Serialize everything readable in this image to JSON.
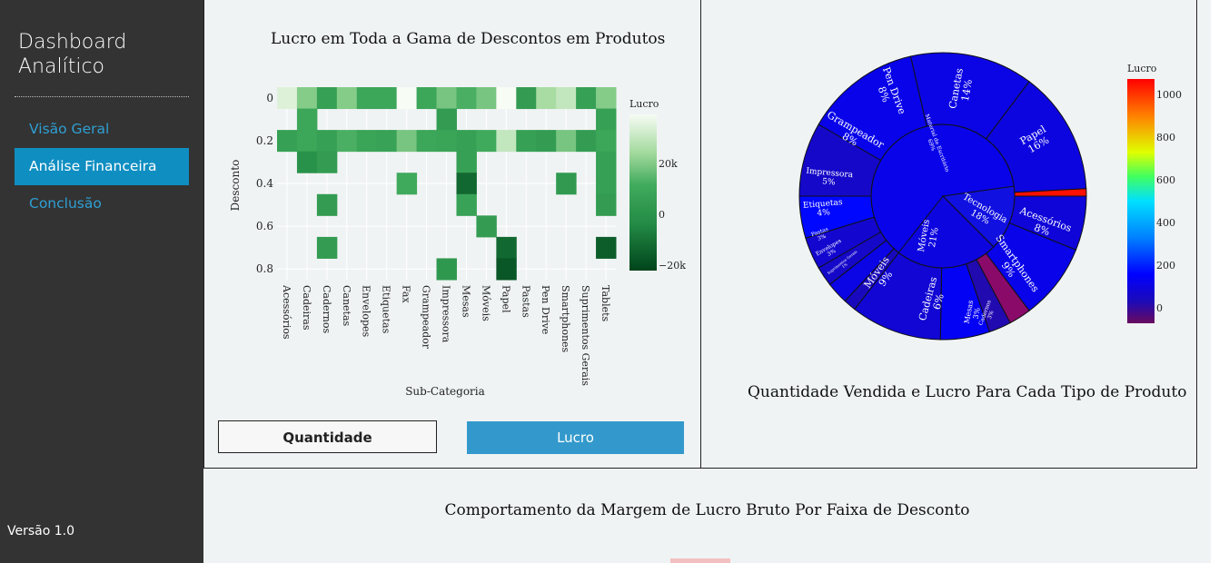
{
  "sidebar": {
    "brand": "Dashboard\nAnalítico",
    "nav": [
      {
        "label": "Visão Geral",
        "active": false
      },
      {
        "label": "Análise Financeira",
        "active": true
      },
      {
        "label": "Conclusão",
        "active": false
      }
    ],
    "version": "Versão 1.0"
  },
  "heatmap": {
    "title": "Lucro em Toda a Gama de Descontos em Produtos",
    "xlabel": "Sub-Categoria",
    "ylabel": "Desconto",
    "colorbar_title": "Lucro",
    "colorbar_ticks": [
      "20k",
      "0",
      "−20k"
    ],
    "categories": [
      "Acessórios",
      "Cadeiras",
      "Cadernos",
      "Canetas",
      "Envelopes",
      "Etiquetas",
      "Fax",
      "Grampeador",
      "Impressora",
      "Mesas",
      "Móveis",
      "Papel",
      "Pastas",
      "Pen Drive",
      "Smartphones",
      "Suprimentos Gerais",
      "Tablets"
    ],
    "y_ticks": [
      "0",
      "0.2",
      "0.4",
      "0.6",
      "0.8"
    ]
  },
  "buttons": {
    "quantidade": "Quantidade",
    "lucro": "Lucro"
  },
  "sunburst": {
    "title": "Quantidade Vendida e Lucro Para Cada Tipo de Produto",
    "colorbar_title": "Lucro",
    "colorbar_ticks": [
      "1000",
      "800",
      "600",
      "400",
      "200",
      "0"
    ],
    "center_labels": [
      {
        "name": "Material de Escritório",
        "pct": "69%"
      },
      {
        "name": "Tecnologia",
        "pct": "18%"
      },
      {
        "name": "Móveis",
        "pct": "21%"
      }
    ],
    "outer_labels": [
      {
        "name": "Canetas",
        "pct": "14%"
      },
      {
        "name": "Papel",
        "pct": "16%"
      },
      {
        "name": "Acessórios",
        "pct": "8%"
      },
      {
        "name": "Smartphones",
        "pct": "9%"
      },
      {
        "name": "Mesas",
        "pct": "3%"
      },
      {
        "name": "Cadernos",
        "pct": "3%"
      },
      {
        "name": "Cadeiras",
        "pct": "6%"
      },
      {
        "name": "Móveis",
        "pct": "9%"
      },
      {
        "name": "Suprimentos Gerais",
        "pct": "1%"
      },
      {
        "name": "Envelopes",
        "pct": "3%"
      },
      {
        "name": "Pastas",
        "pct": "3%"
      },
      {
        "name": "Etiquetas",
        "pct": "4%"
      },
      {
        "name": "Impressora",
        "pct": "5%"
      },
      {
        "name": "Grampeador",
        "pct": "8%"
      },
      {
        "name": "Pen Drive",
        "pct": "8%"
      }
    ]
  },
  "bottom": {
    "title": "Comportamento da Margem de Lucro Bruto Por Faixa de Desconto"
  },
  "chart_data": [
    {
      "type": "heatmap",
      "title": "Lucro em Toda a Gama de Descontos em Produtos",
      "xlabel": "Sub-Categoria",
      "ylabel": "Desconto",
      "x": [
        "Acessórios",
        "Cadeiras",
        "Cadernos",
        "Canetas",
        "Envelopes",
        "Etiquetas",
        "Fax",
        "Grampeador",
        "Impressora",
        "Mesas",
        "Móveis",
        "Papel",
        "Pastas",
        "Pen Drive",
        "Smartphones",
        "Suprimentos Gerais",
        "Tablets"
      ],
      "y": [
        0,
        0.1,
        0.2,
        0.3,
        0.4,
        0.5,
        0.6,
        0.7,
        0.8
      ],
      "zrange": [
        -25000,
        40000
      ],
      "colorscale": "Greens (high=light)",
      "z": [
        [
          35000,
          20000,
          5000,
          20000,
          8000,
          8000,
          40000,
          8000,
          18000,
          12000,
          18000,
          40000,
          3000,
          25000,
          30000,
          5000,
          20000
        ],
        [
          null,
          8000,
          null,
          null,
          null,
          null,
          null,
          null,
          3000,
          null,
          null,
          null,
          null,
          null,
          null,
          null,
          5000
        ],
        [
          5000,
          8000,
          5000,
          12000,
          7000,
          6000,
          18000,
          8000,
          7000,
          5000,
          10000,
          30000,
          5000,
          3000,
          18000,
          3000,
          8000
        ],
        [
          null,
          -2000,
          3000,
          null,
          null,
          null,
          null,
          null,
          null,
          5000,
          null,
          null,
          null,
          null,
          null,
          null,
          5000
        ],
        [
          null,
          null,
          null,
          null,
          null,
          null,
          10000,
          null,
          null,
          -15000,
          null,
          null,
          null,
          null,
          2000,
          null,
          5000
        ],
        [
          null,
          null,
          3000,
          null,
          null,
          null,
          null,
          null,
          null,
          6000,
          null,
          null,
          null,
          null,
          null,
          null,
          3000
        ],
        [
          null,
          null,
          null,
          null,
          null,
          null,
          null,
          null,
          null,
          null,
          3000,
          null,
          null,
          null,
          null,
          null,
          null
        ],
        [
          null,
          null,
          3000,
          null,
          null,
          null,
          null,
          null,
          null,
          null,
          null,
          -15000,
          null,
          null,
          null,
          null,
          -18000
        ],
        [
          null,
          null,
          null,
          null,
          null,
          null,
          null,
          null,
          1000,
          null,
          null,
          -20000,
          null,
          null,
          null,
          null,
          null
        ]
      ],
      "colorbar": {
        "title": "Lucro",
        "ticks": [
          "20k",
          "0",
          "−20k"
        ]
      }
    },
    {
      "type": "sunburst",
      "title": "Quantidade Vendida e Lucro Para Cada Tipo de Produto",
      "colorbar": {
        "title": "Lucro",
        "range": [
          -100,
          1100
        ],
        "ticks": [
          1000,
          800,
          600,
          400,
          200,
          0
        ]
      },
      "parents": [
        {
          "name": "Material de Escritório",
          "pct": 69,
          "profit": 100
        },
        {
          "name": "Tecnologia",
          "pct": 18,
          "profit": 100
        },
        {
          "name": "Móveis",
          "pct": 21,
          "profit": 80
        }
      ],
      "children": [
        {
          "parent": "Material de Escritório",
          "name": "Canetas",
          "pct": 14,
          "profit": 90
        },
        {
          "parent": "Material de Escritório",
          "name": "Papel",
          "pct": 16,
          "profit": 80
        },
        {
          "parent": "Tecnologia",
          "name": "Fax",
          "pct": 0.5,
          "profit": 1050
        },
        {
          "parent": "Tecnologia",
          "name": "Acessórios",
          "pct": 8,
          "profit": 70
        },
        {
          "parent": "Tecnologia",
          "name": "Smartphones",
          "pct": 9,
          "profit": 100
        },
        {
          "parent": "Móveis",
          "name": "Mesas",
          "pct": 3,
          "profit": -80
        },
        {
          "parent": "Móveis",
          "name": "Cadernos",
          "pct": 3,
          "profit": 0
        },
        {
          "parent": "Móveis",
          "name": "Cadeiras",
          "pct": 6,
          "profit": 120
        },
        {
          "parent": "Móveis",
          "name": "Móveis",
          "pct": 9,
          "profit": 60
        },
        {
          "parent": "Material de Escritório",
          "name": "Suprimentos Gerais",
          "pct": 1,
          "profit": 20
        },
        {
          "parent": "Material de Escritório",
          "name": "Envelopes",
          "pct": 3,
          "profit": 90
        },
        {
          "parent": "Material de Escritório",
          "name": "Pastas",
          "pct": 3,
          "profit": 40
        },
        {
          "parent": "Material de Escritório",
          "name": "Etiquetas",
          "pct": 4,
          "profit": 50
        },
        {
          "parent": "Material de Escritório",
          "name": "Impressora",
          "pct": 5,
          "profit": 150
        },
        {
          "parent": "Material de Escritório",
          "name": "Grampeador",
          "pct": 8,
          "profit": 40
        },
        {
          "parent": "Material de Escritório",
          "name": "Pen Drive",
          "pct": 8,
          "profit": 100
        }
      ]
    }
  ]
}
